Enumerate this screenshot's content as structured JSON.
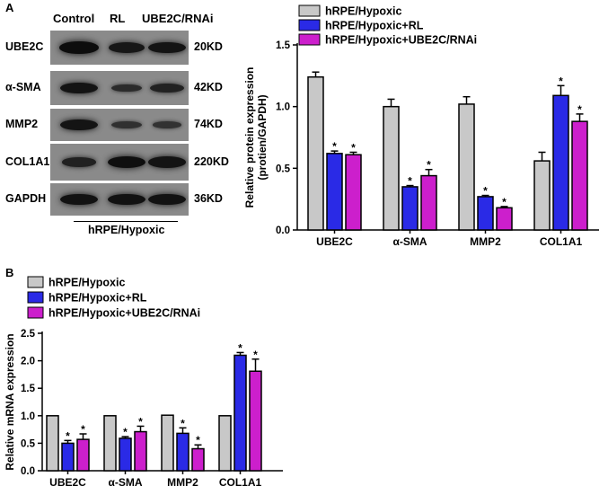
{
  "panels": {
    "a": "A",
    "b": "B"
  },
  "blot": {
    "lanes": [
      "Control",
      "RL",
      "UBE2C/RNAi"
    ],
    "rows": [
      {
        "protein": "UBE2C",
        "size": "20KD",
        "intensity": [
          0.95,
          0.75,
          0.8
        ]
      },
      {
        "protein": "α-SMA",
        "size": "42KD",
        "intensity": [
          0.8,
          0.35,
          0.55
        ]
      },
      {
        "protein": "MMP2",
        "size": "74KD",
        "intensity": [
          0.8,
          0.25,
          0.2
        ]
      },
      {
        "protein": "COL1A1",
        "size": "220KD",
        "intensity": [
          0.55,
          0.9,
          0.8
        ]
      },
      {
        "protein": "GAPDH",
        "size": "36KD",
        "intensity": [
          0.85,
          0.85,
          0.85
        ]
      }
    ],
    "group_label": "hRPE/Hypoxic"
  },
  "colors": {
    "hypoxic": "#c8c8c8",
    "rl": "#2a2ae6",
    "rnai": "#cc1fcc"
  },
  "chart_data": [
    {
      "type": "bar",
      "categories": [
        "UBE2C",
        "α-SMA",
        "MMP2",
        "COL1A1"
      ],
      "ylabel": "Relative protein expression (protien/GAPDH)",
      "ylim": [
        0,
        1.5
      ],
      "yticks": [
        "0.0",
        "0.5",
        "1.0",
        "1.5"
      ],
      "legend_placement": "top",
      "series": [
        {
          "name": "hRPE/Hypoxic",
          "values": [
            1.24,
            1.0,
            1.02,
            0.56
          ],
          "errors": [
            0.04,
            0.06,
            0.06,
            0.07
          ],
          "stars": [
            "",
            "",
            "",
            ""
          ]
        },
        {
          "name": "hRPE/Hypoxic+RL",
          "values": [
            0.62,
            0.35,
            0.27,
            1.09
          ],
          "errors": [
            0.02,
            0.01,
            0.01,
            0.08
          ],
          "stars": [
            "*",
            "*",
            "*",
            "*"
          ]
        },
        {
          "name": "hRPE/Hypoxic+UBE2C/RNAi",
          "values": [
            0.61,
            0.44,
            0.18,
            0.88
          ],
          "errors": [
            0.02,
            0.05,
            0.01,
            0.06
          ],
          "stars": [
            "*",
            "*",
            "*",
            "*"
          ]
        }
      ]
    },
    {
      "type": "bar",
      "categories": [
        "UBE2C",
        "α-SMA",
        "MMP2",
        "COL1A1"
      ],
      "ylabel": "Relative mRNA expression",
      "ylim": [
        0,
        2.5
      ],
      "yticks": [
        "0.0",
        "0.5",
        "1.0",
        "1.5",
        "2.0",
        "2.5"
      ],
      "legend_placement": "top-left",
      "series": [
        {
          "name": "hRPE/Hypoxic",
          "values": [
            1.0,
            1.0,
            1.01,
            1.0
          ],
          "errors": [
            0.0,
            0.0,
            0.0,
            0.0
          ],
          "stars": [
            "",
            "",
            "",
            ""
          ]
        },
        {
          "name": "hRPE/Hypoxic+RL",
          "values": [
            0.5,
            0.59,
            0.68,
            2.1
          ],
          "errors": [
            0.05,
            0.03,
            0.1,
            0.05
          ],
          "stars": [
            "*",
            "*",
            "*",
            "*"
          ]
        },
        {
          "name": "hRPE/Hypoxic+UBE2C/RNAi",
          "values": [
            0.57,
            0.71,
            0.4,
            1.81
          ],
          "errors": [
            0.1,
            0.1,
            0.07,
            0.22
          ],
          "stars": [
            "*",
            "*",
            "*",
            "*"
          ]
        }
      ]
    }
  ]
}
